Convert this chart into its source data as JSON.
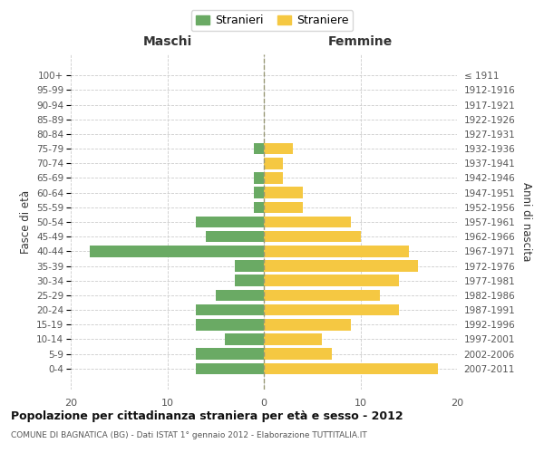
{
  "age_groups": [
    "100+",
    "95-99",
    "90-94",
    "85-89",
    "80-84",
    "75-79",
    "70-74",
    "65-69",
    "60-64",
    "55-59",
    "50-54",
    "45-49",
    "40-44",
    "35-39",
    "30-34",
    "25-29",
    "20-24",
    "15-19",
    "10-14",
    "5-9",
    "0-4"
  ],
  "birth_years": [
    "≤ 1911",
    "1912-1916",
    "1917-1921",
    "1922-1926",
    "1927-1931",
    "1932-1936",
    "1937-1941",
    "1942-1946",
    "1947-1951",
    "1952-1956",
    "1957-1961",
    "1962-1966",
    "1967-1971",
    "1972-1976",
    "1977-1981",
    "1982-1986",
    "1987-1991",
    "1992-1996",
    "1997-2001",
    "2002-2006",
    "2007-2011"
  ],
  "maschi": [
    0,
    0,
    0,
    0,
    0,
    1,
    0,
    1,
    1,
    1,
    7,
    6,
    18,
    3,
    3,
    5,
    7,
    7,
    4,
    7,
    7
  ],
  "femmine": [
    0,
    0,
    0,
    0,
    0,
    3,
    2,
    2,
    4,
    4,
    9,
    10,
    15,
    16,
    14,
    12,
    14,
    9,
    6,
    7,
    18
  ],
  "maschi_color": "#6aaa64",
  "femmine_color": "#f5c842",
  "title": "Popolazione per cittadinanza straniera per età e sesso - 2012",
  "subtitle": "COMUNE DI BAGNATICA (BG) - Dati ISTAT 1° gennaio 2012 - Elaborazione TUTTITALIA.IT",
  "xlabel_left": "Maschi",
  "xlabel_right": "Femmine",
  "ylabel_left": "Fasce di età",
  "ylabel_right": "Anni di nascita",
  "legend_maschi": "Stranieri",
  "legend_femmine": "Straniere",
  "xlim": 20,
  "background_color": "#ffffff",
  "grid_color": "#cccccc"
}
